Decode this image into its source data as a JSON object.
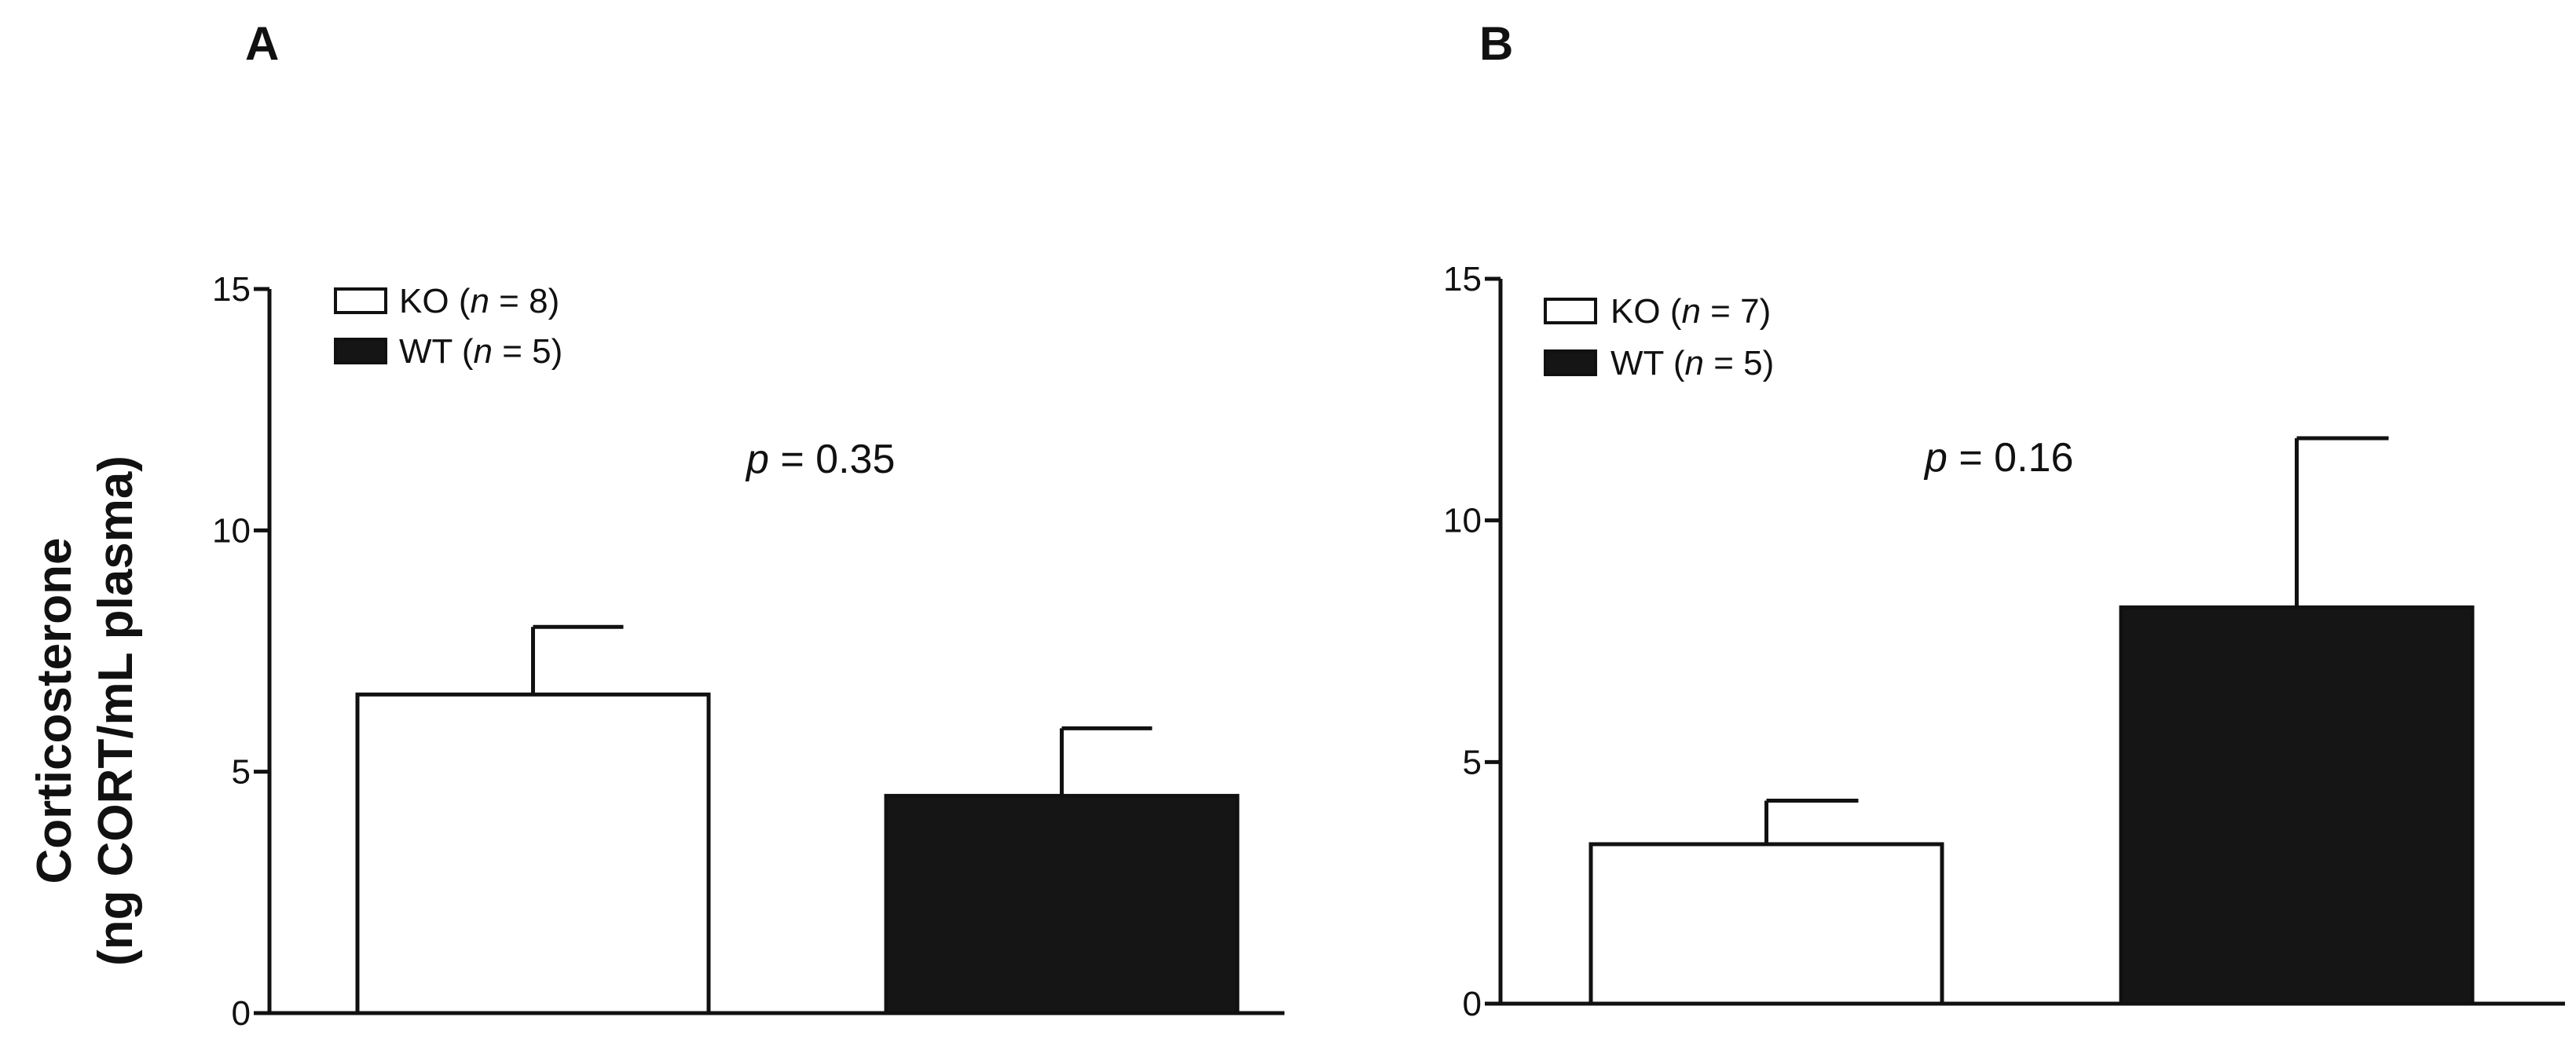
{
  "chart_data": [
    {
      "type": "bar",
      "panel": "A",
      "ylabel_line1": "Corticosterone",
      "ylabel_line2": "(ng CORT/mL plasma)",
      "ylim": [
        0,
        15
      ],
      "yticks": [
        "0",
        "5",
        "10",
        "15"
      ],
      "categories": [
        "KO",
        "WT"
      ],
      "values": [
        6.6,
        4.5
      ],
      "errors": [
        1.4,
        1.4
      ],
      "colors": [
        "#ffffff",
        "#151515"
      ],
      "legend": [
        {
          "group": "KO",
          "n_prefix": "(",
          "n_italic": "n",
          "n_suffix": " = 8)"
        },
        {
          "group": "WT",
          "n_prefix": "(",
          "n_italic": "n",
          "n_suffix": " = 5)"
        }
      ],
      "legend_position": "top-left",
      "annotation": {
        "italic": "p",
        "rest": " = 0.35"
      },
      "grid": false
    },
    {
      "type": "bar",
      "panel": "B",
      "ylim": [
        0,
        15
      ],
      "yticks": [
        "0",
        "5",
        "10",
        "15"
      ],
      "categories": [
        "KO",
        "WT"
      ],
      "values": [
        3.3,
        8.2
      ],
      "errors": [
        0.9,
        3.5
      ],
      "colors": [
        "#ffffff",
        "#151515"
      ],
      "legend": [
        {
          "group": "KO",
          "n_prefix": "(",
          "n_italic": "n",
          "n_suffix": " = 7)"
        },
        {
          "group": "WT",
          "n_prefix": "(",
          "n_italic": "n",
          "n_suffix": " = 5)"
        }
      ],
      "legend_position": "top-left",
      "annotation": {
        "italic": "p",
        "rest": " = 0.16"
      },
      "grid": false
    }
  ]
}
